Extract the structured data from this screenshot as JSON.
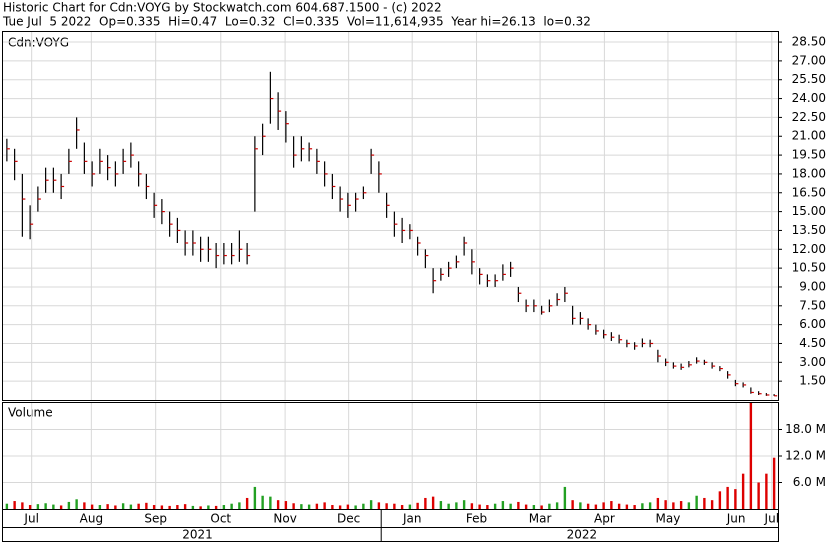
{
  "chart_data": {
    "type": "ohlc",
    "title": "Historic Chart for Cdn:VOYG by Stockwatch.com 604.687.1500 - (c) 2022",
    "subtitle": "Tue Jul  5 2022  Op=0.335  Hi=0.47  Lo=0.32  Cl=0.335  Vol=11,614,935  Year hi=26.13  lo=0.32",
    "symbol_label": "Cdn:VOYG",
    "volume_label": "Volume",
    "bar_color": "#000000",
    "close_color": "#cc0000",
    "volume_up_color": "#22a022",
    "volume_down_color": "#dd0000",
    "grid": true,
    "ylim": [
      0,
      29.3
    ],
    "yticks": [
      {
        "value": 1.5,
        "label": "1.50"
      },
      {
        "value": 3,
        "label": "3.00"
      },
      {
        "value": 4.5,
        "label": "4.50"
      },
      {
        "value": 6,
        "label": "6.00"
      },
      {
        "value": 7.5,
        "label": "7.50"
      },
      {
        "value": 9,
        "label": "9.00"
      },
      {
        "value": 10.5,
        "label": "10.50"
      },
      {
        "value": 12,
        "label": "12.00"
      },
      {
        "value": 13.5,
        "label": "13.50"
      },
      {
        "value": 15,
        "label": "15.00"
      },
      {
        "value": 16.5,
        "label": "16.50"
      },
      {
        "value": 18,
        "label": "18.00"
      },
      {
        "value": 19.5,
        "label": "19.50"
      },
      {
        "value": 21,
        "label": "21.00"
      },
      {
        "value": 22.5,
        "label": "22.50"
      },
      {
        "value": 24,
        "label": "24.00"
      },
      {
        "value": 25.5,
        "label": "25.50"
      },
      {
        "value": 27,
        "label": "27.00"
      },
      {
        "value": 28.5,
        "label": "28.50"
      }
    ],
    "y2lim": [
      0,
      24000000
    ],
    "y2ticks": [
      {
        "value": 6000000,
        "label": "6.0 M"
      },
      {
        "value": 12000000,
        "label": "12.0 M"
      },
      {
        "value": 18000000,
        "label": "18.0 M"
      }
    ],
    "xticks": [
      {
        "value": 3.2,
        "label": "Jul"
      },
      {
        "value": 10.9,
        "label": "Aug"
      },
      {
        "value": 19.2,
        "label": "Sep"
      },
      {
        "value": 27.6,
        "label": "Oct"
      },
      {
        "value": 35.9,
        "label": "Nov"
      },
      {
        "value": 44.1,
        "label": "Dec"
      },
      {
        "value": 52.3,
        "label": "Jan"
      },
      {
        "value": 60.6,
        "label": "Feb"
      },
      {
        "value": 68.8,
        "label": "Mar"
      },
      {
        "value": 77.1,
        "label": "Apr"
      },
      {
        "value": 85.3,
        "label": "May"
      },
      {
        "value": 94.1,
        "label": "Jun"
      },
      {
        "value": 98.7,
        "label": "Jul"
      }
    ],
    "years": [
      {
        "value": 24.6,
        "label": "2021"
      },
      {
        "value": 74.2,
        "label": "2022"
      }
    ],
    "year_split": 48.3,
    "high": [
      20.8,
      20,
      18,
      15.5,
      17,
      18.5,
      18.5,
      18,
      20,
      22.5,
      20.5,
      19,
      20,
      19.5,
      19,
      20,
      20.5,
      19,
      18,
      16.5,
      16,
      15,
      14.5,
      13.5,
      13.5,
      13,
      13,
      12.5,
      12.5,
      12.5,
      13.5,
      12.5,
      21,
      22,
      26.13,
      24.5,
      23,
      21,
      21,
      20.5,
      20,
      19,
      18,
      17,
      16.5,
      16.5,
      17,
      20,
      19,
      16.5,
      15,
      14.5,
      14,
      13,
      12,
      10.5,
      10.5,
      11,
      11.5,
      13,
      12,
      10.5,
      10,
      10,
      10.8,
      11,
      9,
      8,
      8,
      7.5,
      8,
      8.5,
      9,
      7.5,
      7,
      6.5,
      6,
      5.6,
      5.4,
      5.2,
      4.8,
      4.6,
      4.9,
      4.8,
      4,
      3.3,
      3,
      2.9,
      3.1,
      3.4,
      3.2,
      3,
      2.7,
      2.3,
      1.6,
      1.4,
      1,
      0.7,
      0.55,
      0.47
    ],
    "low": [
      19,
      17.5,
      13,
      12.8,
      15,
      16.5,
      16.5,
      16,
      18,
      20,
      18,
      17,
      18,
      17.5,
      17,
      18,
      18.5,
      17,
      16,
      14.5,
      14,
      13,
      12.5,
      11.5,
      11.5,
      11,
      11,
      10.5,
      10.8,
      10.8,
      11,
      10.8,
      15,
      19.5,
      22,
      21.5,
      20.5,
      18.5,
      19,
      19,
      18,
      17,
      16,
      15,
      14.5,
      15,
      16,
      18,
      16.5,
      14.5,
      13,
      12.5,
      12.8,
      11.5,
      10.5,
      8.5,
      9.5,
      9.8,
      10.5,
      11.5,
      10,
      9.2,
      9,
      9,
      9.5,
      9.8,
      7.8,
      7,
      7,
      6.8,
      7,
      7.5,
      7.8,
      6,
      6,
      5.6,
      5.2,
      4.9,
      4.7,
      4.5,
      4.2,
      4,
      4.2,
      4.2,
      3,
      2.7,
      2.5,
      2.4,
      2.6,
      2.9,
      2.8,
      2.5,
      2.3,
      1.7,
      1.1,
      1,
      0.5,
      0.4,
      0.33,
      0.32
    ],
    "close": [
      20,
      19,
      16,
      14,
      16,
      17.5,
      17.5,
      17,
      19,
      21.5,
      19,
      18,
      19,
      18.5,
      18,
      19,
      19.5,
      18,
      17,
      15.5,
      15,
      14,
      13.5,
      12.5,
      12.5,
      12,
      12,
      11.5,
      11.5,
      11.5,
      12,
      11.5,
      20,
      21,
      24,
      23,
      22,
      19.5,
      20,
      20,
      19,
      18,
      17,
      16,
      15.5,
      16,
      16.5,
      19.5,
      18,
      15.5,
      14,
      13.5,
      13.5,
      12.5,
      11.5,
      9.5,
      10,
      10.5,
      11,
      12.5,
      11,
      10,
      9.5,
      9.5,
      10,
      10.5,
      8.5,
      7.5,
      7.5,
      7,
      7.5,
      8,
      8.5,
      6.5,
      6.5,
      6,
      5.5,
      5.2,
      5,
      4.8,
      4.5,
      4.3,
      4.5,
      4.5,
      3.5,
      3,
      2.7,
      2.6,
      2.8,
      3.1,
      3,
      2.7,
      2.5,
      2,
      1.3,
      1.2,
      0.6,
      0.5,
      0.4,
      0.335
    ],
    "volume": [
      1200000,
      1800000,
      1500000,
      900000,
      1100000,
      1300000,
      1000000,
      800000,
      1600000,
      2200000,
      1500000,
      1000000,
      900000,
      1100000,
      800000,
      1300000,
      1000000,
      1200000,
      1400000,
      900000,
      800000,
      700000,
      900000,
      1100000,
      700000,
      600000,
      800000,
      700000,
      900000,
      1200000,
      1500000,
      2500000,
      5000000,
      3000000,
      2800000,
      2000000,
      1800000,
      1300000,
      1100000,
      1000000,
      1200000,
      1500000,
      900000,
      800000,
      1000000,
      800000,
      1200000,
      2000000,
      1500000,
      1300000,
      1200000,
      900000,
      1000000,
      1400000,
      2500000,
      2800000,
      1800000,
      1200000,
      1500000,
      2000000,
      1300000,
      1000000,
      900000,
      1200000,
      1800000,
      1200000,
      1600000,
      1000000,
      900000,
      800000,
      1200000,
      1500000,
      5000000,
      2000000,
      1500000,
      1200000,
      1000000,
      1500000,
      1800000,
      1200000,
      1000000,
      900000,
      1300000,
      1500000,
      2500000,
      2000000,
      1500000,
      1800000,
      1500000,
      3000000,
      2500000,
      2000000,
      4000000,
      5000000,
      4500000,
      8000000,
      24000000,
      6000000,
      8000000,
      11614935
    ]
  }
}
